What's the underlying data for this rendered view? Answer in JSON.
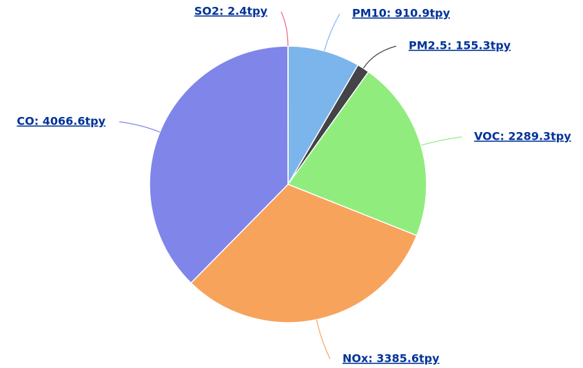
{
  "chart_data": {
    "type": "pie",
    "values": [
      910.9,
      155.3,
      2289.3,
      3385.6,
      4066.6,
      2.4
    ],
    "value_labels": [
      "PM10: 910.9tpy",
      "PM2.5: 155.3tpy",
      "VOC: 2289.3tpy",
      "NOx: 3385.6tpy",
      "CO: 4066.6tpy",
      "SO2: 2.4tpy"
    ],
    "colors": [
      "#7cb5ec",
      "#434348",
      "#90ed7d",
      "#f7a35c",
      "#8085e9",
      "#f15c80"
    ]
  }
}
